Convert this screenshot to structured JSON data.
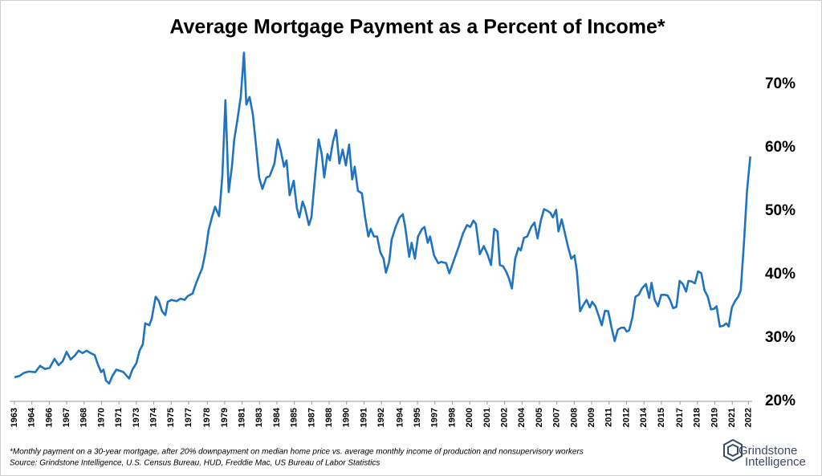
{
  "chart_data": {
    "type": "line",
    "title": "Average Mortgage Payment as a Percent of Income*",
    "notes": [
      "*Monthly payment on a 30-year mortgage, after 20% downpayment on median home price vs. average monthly income of production and nonsupervisory  workers",
      "Source: Grindstone Intelligence,  U.S. Census Bureau, HUD, Freddie Mac, US Bureau of Labor Statistics"
    ],
    "brand": [
      "Grindstone",
      "Intelligence"
    ],
    "color": "#1f73c0",
    "x": [
      1963.0,
      1963.39,
      1963.77,
      1964.16,
      1964.68,
      1965.06,
      1965.45,
      1965.84,
      1966.22,
      1966.55,
      1966.87,
      1967.19,
      1967.52,
      1967.84,
      1968.16,
      1968.48,
      1968.8,
      1969.13,
      1969.45,
      1969.71,
      1969.97,
      1970.16,
      1970.35,
      1970.61,
      1970.87,
      1971.19,
      1971.51,
      1971.77,
      1972.03,
      1972.22,
      1972.48,
      1972.8,
      1973.06,
      1973.32,
      1973.51,
      1973.84,
      1974.03,
      1974.35,
      1974.61,
      1974.87,
      1975.13,
      1975.32,
      1975.64,
      1976.03,
      1976.35,
      1976.67,
      1976.93,
      1977.32,
      1977.58,
      1977.84,
      1978.09,
      1978.35,
      1978.61,
      1978.87,
      1979.13,
      1979.45,
      1979.71,
      1979.96,
      1980.22,
      1980.48,
      1980.67,
      1980.93,
      1981.19,
      1981.45,
      1981.64,
      1981.9,
      1982.16,
      1982.41,
      1982.67,
      1982.93,
      1983.25,
      1983.51,
      1983.9,
      1984.16,
      1984.41,
      1984.67,
      1984.87,
      1985.12,
      1985.45,
      1985.7,
      1985.9,
      1986.16,
      1986.35,
      1986.67,
      1986.87,
      1987.19,
      1987.45,
      1987.7,
      1987.9,
      1988.16,
      1988.35,
      1988.61,
      1988.86,
      1989.12,
      1989.38,
      1989.64,
      1989.9,
      1990.15,
      1990.35,
      1990.61,
      1990.93,
      1991.19,
      1991.45,
      1991.64,
      1991.9,
      1992.15,
      1992.41,
      1992.67,
      1992.86,
      1993.12,
      1993.32,
      1993.64,
      1993.96,
      1994.22,
      1994.41,
      1994.73,
      1994.93,
      1995.19,
      1995.44,
      1995.77,
      1995.96,
      1996.22,
      1996.41,
      1996.73,
      1997.06,
      1997.31,
      1997.7,
      1997.96,
      1998.28,
      1998.73,
      1999.06,
      1999.38,
      1999.64,
      1999.89,
      2000.09,
      2000.41,
      2000.73,
      2001.06,
      2001.31,
      2001.57,
      2001.83,
      2002.02,
      2002.28,
      2002.54,
      2002.73,
      2002.99,
      2003.25,
      2003.51,
      2003.7,
      2003.96,
      2004.22,
      2004.54,
      2004.8,
      2005.05,
      2005.31,
      2005.57,
      2005.89,
      2006.09,
      2006.28,
      2006.54,
      2006.73,
      2006.99,
      2007.25,
      2007.51,
      2007.76,
      2008.02,
      2008.21,
      2008.47,
      2008.73,
      2008.99,
      2009.25,
      2009.44,
      2009.7,
      2009.96,
      2010.21,
      2010.47,
      2010.73,
      2010.99,
      2011.25,
      2011.5,
      2011.76,
      2012.02,
      2012.21,
      2012.41,
      2012.67,
      2012.92,
      2013.18,
      2013.44,
      2013.76,
      2014.02,
      2014.21,
      2014.47,
      2014.73,
      2014.99,
      2015.25,
      2015.5,
      2015.7,
      2015.95,
      2016.21,
      2016.47,
      2016.73,
      2016.99,
      2017.18,
      2017.44,
      2017.7,
      2017.95,
      2018.21,
      2018.47,
      2018.73,
      2018.99,
      2019.24,
      2019.44,
      2019.7,
      2019.96,
      2020.22,
      2020.41,
      2020.67,
      2020.92,
      2021.18,
      2021.38,
      2021.64,
      2021.89,
      2022.15
    ],
    "values": [
      23.8,
      24.0,
      24.5,
      24.7,
      24.6,
      25.6,
      25.1,
      25.3,
      26.7,
      25.7,
      26.3,
      27.8,
      26.6,
      27.2,
      28.0,
      27.6,
      28.0,
      27.6,
      27.3,
      25.8,
      24.6,
      25.0,
      23.3,
      22.8,
      24.0,
      25.0,
      24.8,
      24.6,
      24.0,
      23.6,
      25.0,
      26.0,
      28.0,
      29.0,
      32.3,
      32.0,
      33.0,
      36.5,
      35.8,
      34.2,
      33.6,
      35.7,
      36.0,
      35.8,
      36.2,
      36.0,
      36.6,
      37.0,
      38.5,
      39.8,
      41.0,
      43.5,
      47.0,
      49.0,
      50.7,
      49.2,
      55.5,
      67.5,
      53.0,
      57.0,
      61.3,
      64.5,
      68.0,
      75.0,
      66.8,
      68.0,
      65.3,
      60.5,
      55.3,
      53.5,
      55.3,
      55.5,
      57.5,
      61.3,
      59.5,
      57.0,
      58.0,
      52.5,
      54.8,
      50.5,
      49.0,
      51.5,
      50.5,
      47.8,
      49.0,
      56.0,
      61.3,
      59.0,
      55.3,
      59.0,
      58.0,
      61.0,
      62.8,
      57.5,
      59.7,
      57.2,
      60.5,
      55.0,
      57.0,
      53.2,
      52.8,
      49.0,
      46.0,
      47.2,
      46.0,
      46.0,
      43.5,
      42.5,
      40.3,
      42.0,
      45.5,
      47.5,
      49.0,
      49.5,
      47.5,
      42.8,
      45.0,
      42.5,
      46.0,
      47.2,
      47.5,
      45.0,
      46.0,
      43.0,
      41.8,
      42.0,
      41.8,
      40.2,
      42.0,
      44.5,
      46.5,
      47.8,
      47.5,
      48.5,
      48.0,
      43.2,
      44.5,
      43.0,
      41.5,
      47.2,
      46.8,
      41.5,
      41.3,
      40.4,
      39.5,
      37.8,
      42.5,
      44.2,
      43.8,
      45.8,
      46.0,
      47.5,
      48.2,
      45.7,
      48.5,
      50.3,
      50.0,
      49.7,
      49.0,
      50.2,
      46.8,
      48.7,
      46.5,
      44.3,
      42.5,
      43.0,
      40.5,
      34.2,
      35.2,
      36.0,
      34.8,
      35.7,
      35.0,
      33.5,
      32.0,
      34.3,
      34.2,
      31.7,
      29.5,
      31.3,
      31.6,
      31.6,
      31.0,
      31.2,
      33.2,
      36.5,
      36.8,
      37.8,
      38.5,
      36.3,
      38.7,
      36.0,
      35.0,
      36.8,
      36.8,
      36.7,
      36.0,
      34.7,
      34.9,
      39.0,
      38.5,
      37.3,
      39.0,
      38.9,
      38.6,
      40.5,
      40.2,
      37.5,
      36.5,
      34.5,
      34.6,
      35.0,
      31.8,
      31.9,
      32.3,
      31.8,
      34.8,
      35.8,
      36.5,
      37.5,
      45.0,
      53.3,
      58.6
    ],
    "xlim": [
      1962.6,
      2022.3
    ],
    "xticks": [
      {
        "value": 1963.0,
        "label": "1963"
      },
      {
        "value": 1964.4,
        "label": "1964"
      },
      {
        "value": 1965.8,
        "label": "1966"
      },
      {
        "value": 1967.2,
        "label": "1967"
      },
      {
        "value": 1968.6,
        "label": "1968"
      },
      {
        "value": 1970.0,
        "label": "1970"
      },
      {
        "value": 1971.4,
        "label": "1971"
      },
      {
        "value": 1972.8,
        "label": "1973"
      },
      {
        "value": 1974.2,
        "label": "1974"
      },
      {
        "value": 1975.6,
        "label": "1975"
      },
      {
        "value": 1977.0,
        "label": "1977"
      },
      {
        "value": 1978.5,
        "label": "1978"
      },
      {
        "value": 1979.9,
        "label": "1979"
      },
      {
        "value": 1981.3,
        "label": "1981"
      },
      {
        "value": 1982.7,
        "label": "1983"
      },
      {
        "value": 1984.1,
        "label": "1984"
      },
      {
        "value": 1985.5,
        "label": "1985"
      },
      {
        "value": 1986.9,
        "label": "1987"
      },
      {
        "value": 1988.3,
        "label": "1988"
      },
      {
        "value": 1989.7,
        "label": "1990"
      },
      {
        "value": 1991.1,
        "label": "1991"
      },
      {
        "value": 1992.5,
        "label": "1992"
      },
      {
        "value": 1994.0,
        "label": "1994"
      },
      {
        "value": 1995.4,
        "label": "1995"
      },
      {
        "value": 1996.8,
        "label": "1997"
      },
      {
        "value": 1998.2,
        "label": "1998"
      },
      {
        "value": 1999.6,
        "label": "2000"
      },
      {
        "value": 2001.0,
        "label": "2001"
      },
      {
        "value": 2002.4,
        "label": "2002"
      },
      {
        "value": 2003.8,
        "label": "2004"
      },
      {
        "value": 2005.2,
        "label": "2005"
      },
      {
        "value": 2006.6,
        "label": "2007"
      },
      {
        "value": 2008.0,
        "label": "2008"
      },
      {
        "value": 2009.4,
        "label": "2009"
      },
      {
        "value": 2010.8,
        "label": "2011"
      },
      {
        "value": 2012.2,
        "label": "2012"
      },
      {
        "value": 2013.6,
        "label": "2014"
      },
      {
        "value": 2015.0,
        "label": "2015"
      },
      {
        "value": 2016.5,
        "label": "2017"
      },
      {
        "value": 2017.9,
        "label": "2018"
      },
      {
        "value": 2019.3,
        "label": "2019"
      },
      {
        "value": 2020.7,
        "label": "2021"
      },
      {
        "value": 2022.0,
        "label": "2022"
      }
    ],
    "ylim": [
      20,
      76
    ],
    "yticks": [
      {
        "value": 20,
        "label": "20%"
      },
      {
        "value": 30,
        "label": "30%"
      },
      {
        "value": 40,
        "label": "40%"
      },
      {
        "value": 50,
        "label": "50%"
      },
      {
        "value": 60,
        "label": "60%"
      },
      {
        "value": 70,
        "label": "70%"
      }
    ],
    "grid": false
  }
}
